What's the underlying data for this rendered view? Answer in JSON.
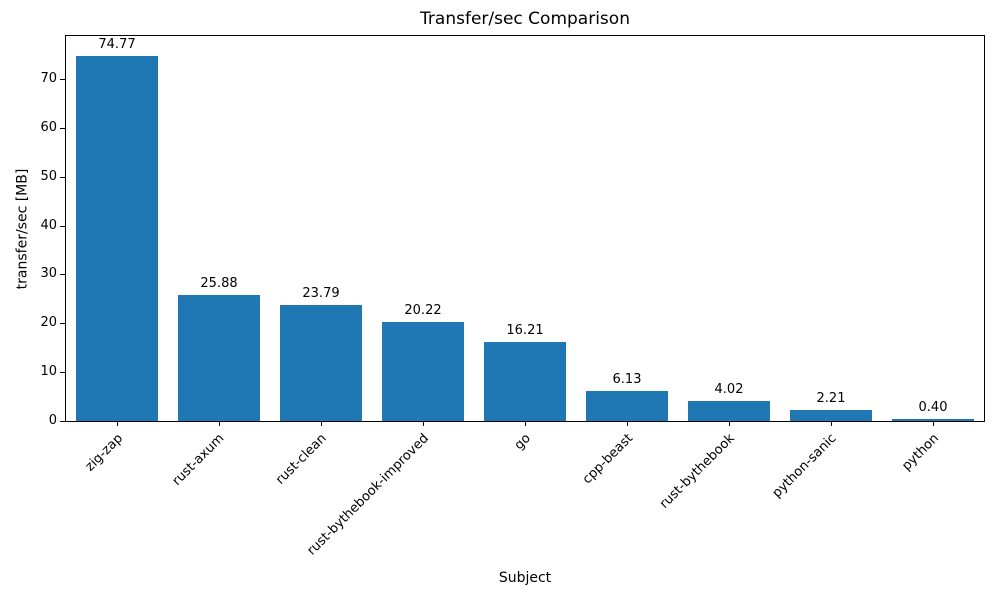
{
  "chart_data": {
    "type": "bar",
    "title": "Transfer/sec Comparison",
    "xlabel": "Subject",
    "ylabel": "transfer/sec [MB]",
    "categories": [
      "zig-zap",
      "rust-axum",
      "rust-clean",
      "rust-bythebook-improved",
      "go",
      "cpp-beast",
      "rust-bythebook",
      "python-sanic",
      "python"
    ],
    "values": [
      74.77,
      25.88,
      23.79,
      20.22,
      16.21,
      6.13,
      4.02,
      2.21,
      0.4
    ],
    "value_labels": [
      "74.77",
      "25.88",
      "23.79",
      "20.22",
      "16.21",
      "6.13",
      "4.02",
      "2.21",
      "0.40"
    ],
    "bar_color": "#1f77b4",
    "ylim": [
      0,
      78.8
    ],
    "yticks": [
      0,
      10,
      20,
      30,
      40,
      50,
      60,
      70
    ],
    "grid": false,
    "legend": "none",
    "x_tick_rotation": 45
  }
}
